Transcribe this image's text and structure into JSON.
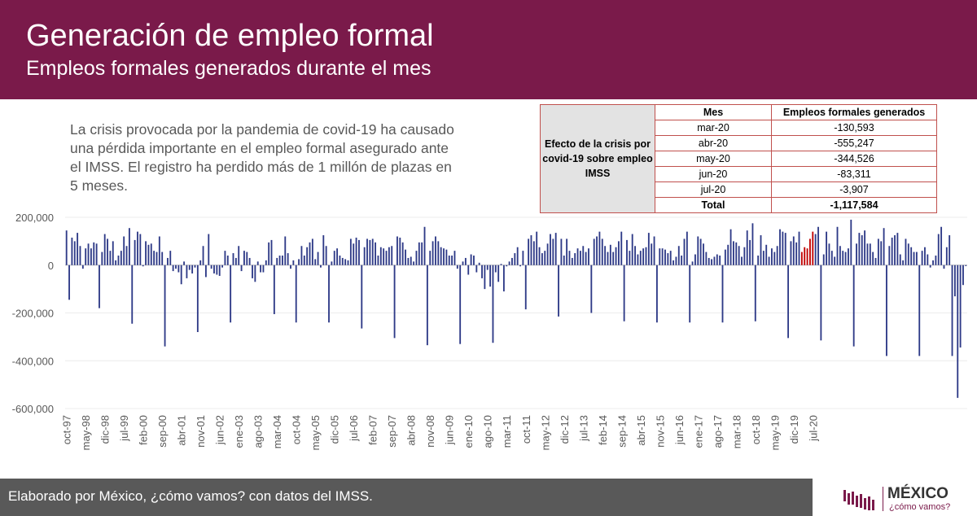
{
  "header": {
    "title": "Generación de empleo formal",
    "subtitle": "Empleos formales generados durante el mes"
  },
  "description": "La crisis provocada por la pandemia de covid-19 ha causado una pérdida importante en el empleo formal asegurado ante el IMSS. El registro ha perdido más de 1 millón de plazas en 5 meses.",
  "crisis_table": {
    "side_label": "Efecto de la crisis por covid-19 sobre empleo IMSS",
    "col_month": "Mes",
    "col_value": "Empleos formales generados",
    "rows": [
      {
        "month": "mar-20",
        "value": "-130,593"
      },
      {
        "month": "abr-20",
        "value": "-555,247"
      },
      {
        "month": "may-20",
        "value": "-344,526"
      },
      {
        "month": "jun-20",
        "value": "-83,311"
      },
      {
        "month": "jul-20",
        "value": "-3,907"
      }
    ],
    "total_label": "Total",
    "total_value": "-1,117,584"
  },
  "footer": {
    "text": "Elaborado por México, ¿cómo vamos? con datos del IMSS."
  },
  "logo": {
    "name": "MÉXICO",
    "tagline": "¿cómo vamos?"
  },
  "colors": {
    "header_bg": "#7a1a4a",
    "bar_normal": "#2e3a87",
    "bar_covid": "#c00000",
    "footer_bg": "#595959"
  },
  "chart_data": {
    "type": "bar",
    "title": "",
    "xlabel": "",
    "ylabel": "",
    "ylim": [
      -600000,
      200000
    ],
    "yticks": [
      200000,
      0,
      -200000,
      -400000,
      -600000
    ],
    "ytick_labels": [
      "200,000",
      "0",
      "-200,000",
      "-400,000",
      "-600,000"
    ],
    "start_month": "oct-97",
    "xtick_labels": [
      "oct-97",
      "may-98",
      "dic-98",
      "jul-99",
      "feb-00",
      "sep-00",
      "abr-01",
      "nov-01",
      "jun-02",
      "ene-03",
      "ago-03",
      "mar-04",
      "oct-04",
      "may-05",
      "dic-05",
      "jul-06",
      "feb-07",
      "sep-07",
      "abr-08",
      "nov-08",
      "jun-09",
      "ene-10",
      "ago-10",
      "mar-11",
      "oct-11",
      "may-12",
      "dic-12",
      "jul-13",
      "feb-14",
      "sep-14",
      "abr-15",
      "nov-15",
      "jun-16",
      "ene-17",
      "ago-17",
      "mar-18",
      "oct-18",
      "may-19",
      "dic-19",
      "jul-20"
    ],
    "highlight_months": [
      "mar-20",
      "abr-20",
      "may-20",
      "jun-20",
      "jul-20"
    ],
    "series": [
      {
        "values": [
          145000,
          -145000,
          115000,
          100000,
          135000,
          80000,
          -15000,
          70000,
          90000,
          70000,
          95000,
          90000,
          -180000,
          55000,
          130000,
          110000,
          60000,
          100000,
          20000,
          40000,
          60000,
          120000,
          80000,
          155000,
          -245000,
          105000,
          140000,
          130000,
          -5000,
          100000,
          85000,
          90000,
          60000,
          55000,
          120000,
          55000,
          -340000,
          30000,
          60000,
          -25000,
          -15000,
          -30000,
          -80000,
          15000,
          -55000,
          -20000,
          -35000,
          -10000,
          -280000,
          20000,
          80000,
          -50000,
          130000,
          -15000,
          -35000,
          -40000,
          -45000,
          -10000,
          60000,
          40000,
          -240000,
          50000,
          30000,
          80000,
          -25000,
          60000,
          55000,
          30000,
          -55000,
          -70000,
          15000,
          -30000,
          -30000,
          20000,
          95000,
          105000,
          -205000,
          30000,
          40000,
          40000,
          120000,
          50000,
          -15000,
          20000,
          -240000,
          25000,
          80000,
          40000,
          75000,
          95000,
          110000,
          25000,
          55000,
          -10000,
          125000,
          80000,
          -240000,
          15000,
          60000,
          70000,
          40000,
          30000,
          25000,
          20000,
          110000,
          90000,
          115000,
          105000,
          -265000,
          75000,
          110000,
          105000,
          110000,
          95000,
          40000,
          75000,
          70000,
          60000,
          75000,
          80000,
          -305000,
          120000,
          115000,
          95000,
          65000,
          30000,
          35000,
          15000,
          60000,
          95000,
          95000,
          160000,
          -335000,
          60000,
          100000,
          120000,
          100000,
          75000,
          70000,
          65000,
          40000,
          40000,
          60000,
          -15000,
          -330000,
          15000,
          30000,
          -40000,
          45000,
          40000,
          -30000,
          10000,
          -55000,
          -100000,
          -20000,
          -90000,
          -325000,
          -30000,
          -70000,
          5000,
          -110000,
          -5000,
          15000,
          30000,
          50000,
          75000,
          -5000,
          60000,
          -185000,
          110000,
          125000,
          100000,
          140000,
          75000,
          50000,
          60000,
          90000,
          130000,
          110000,
          135000,
          -215000,
          110000,
          40000,
          110000,
          60000,
          30000,
          50000,
          70000,
          60000,
          80000,
          55000,
          70000,
          -200000,
          110000,
          120000,
          140000,
          110000,
          80000,
          55000,
          85000,
          55000,
          75000,
          100000,
          140000,
          -235000,
          105000,
          60000,
          130000,
          80000,
          45000,
          60000,
          70000,
          75000,
          135000,
          90000,
          120000,
          -240000,
          70000,
          70000,
          65000,
          50000,
          60000,
          20000,
          35000,
          80000,
          40000,
          110000,
          140000,
          -240000,
          15000,
          45000,
          120000,
          110000,
          90000,
          55000,
          30000,
          25000,
          35000,
          45000,
          40000,
          -240000,
          65000,
          85000,
          150000,
          100000,
          95000,
          80000,
          35000,
          75000,
          145000,
          105000,
          175000,
          -235000,
          40000,
          125000,
          60000,
          85000,
          35000,
          70000,
          55000,
          80000,
          150000,
          140000,
          135000,
          -305000,
          100000,
          120000,
          95000,
          140000,
          55000,
          75000,
          70000,
          110000,
          140000,
          130000,
          160000,
          -315000,
          45000,
          140000,
          90000,
          60000,
          35000,
          160000,
          80000,
          60000,
          55000,
          70000,
          190000,
          -340000,
          90000,
          135000,
          125000,
          145000,
          90000,
          90000,
          55000,
          30000,
          110000,
          100000,
          155000,
          -380000,
          80000,
          115000,
          125000,
          135000,
          45000,
          20000,
          110000,
          90000,
          75000,
          55000,
          55000,
          -380000,
          60000,
          75000,
          45000,
          -10000,
          20000,
          40000,
          130000,
          160000,
          -15000,
          75000,
          125000,
          -380000,
          -130593,
          -555247,
          -344526,
          -83311,
          -3907
        ]
      }
    ]
  }
}
